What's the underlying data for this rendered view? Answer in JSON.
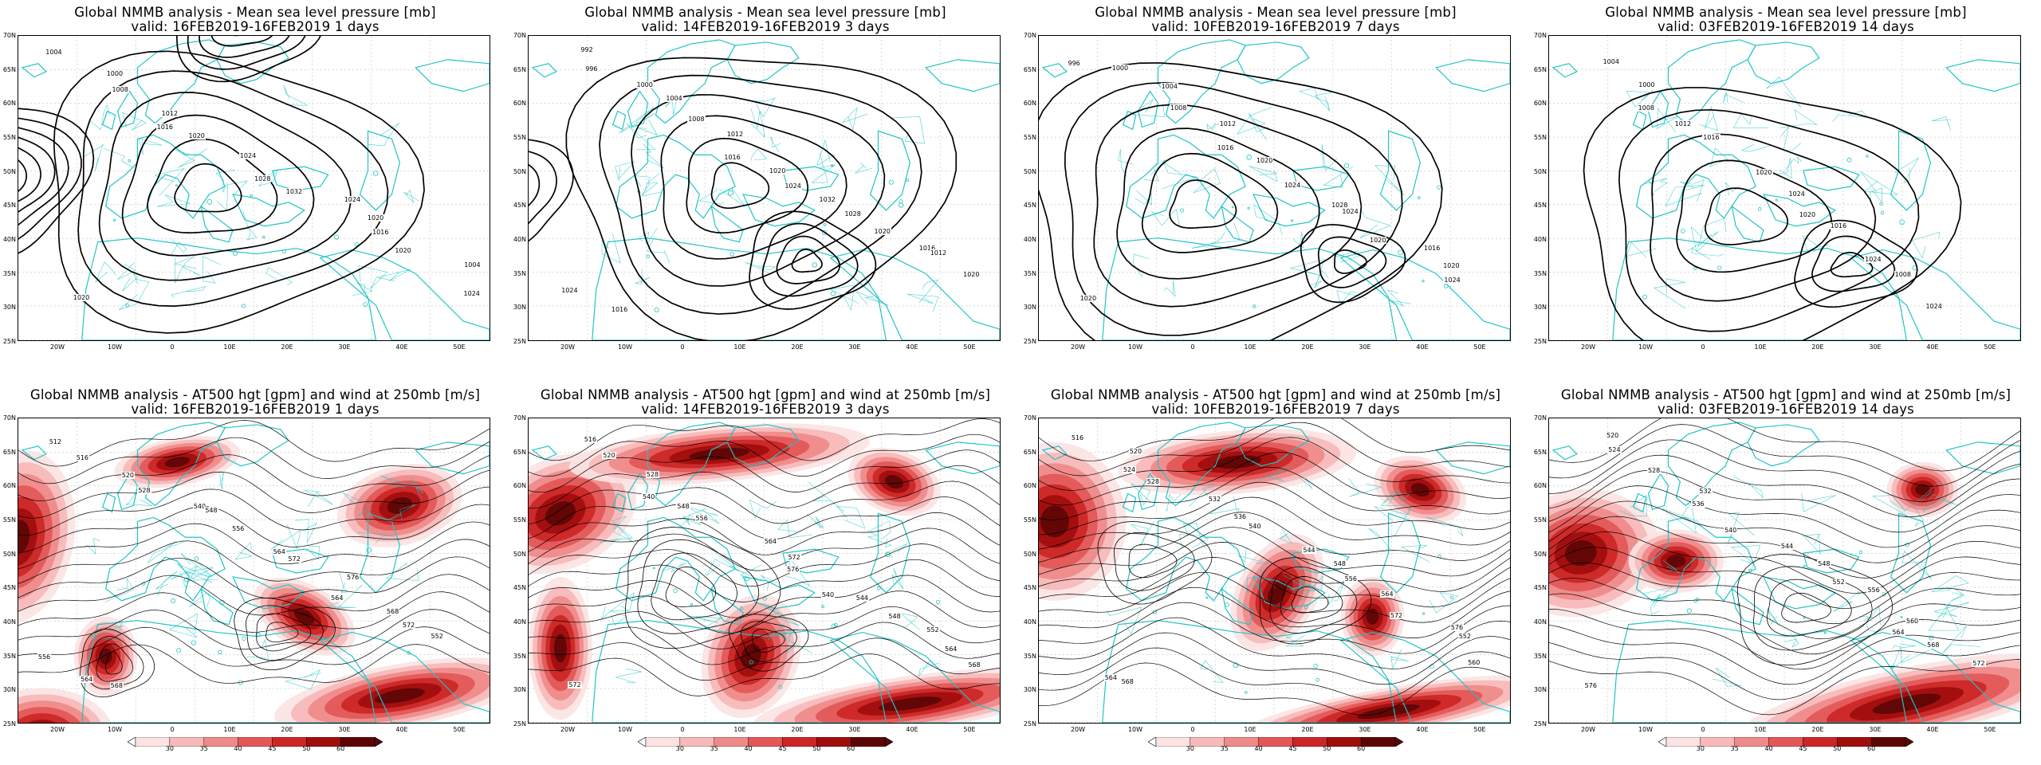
{
  "colors": {
    "coast": "#22c4c4",
    "contour": "#000000",
    "wind_scale": [
      "#fbe3e3",
      "#f7b9b9",
      "#ef8a8a",
      "#e35757",
      "#cc2626",
      "#a00d0d",
      "#5c0505"
    ]
  },
  "axes": {
    "y_ticks": [
      "70N",
      "65N",
      "60N",
      "55N",
      "50N",
      "45N",
      "40N",
      "35N",
      "30N",
      "25N"
    ],
    "x_ticks": [
      "20W",
      "10W",
      "0",
      "10E",
      "20E",
      "30E",
      "40E",
      "50E"
    ]
  },
  "colorbar": {
    "ticks": [
      "30",
      "35",
      "40",
      "45",
      "50",
      "60"
    ]
  },
  "panels": [
    {
      "id": "mslp-1",
      "title": "Global NMMB analysis - Mean sea level pressure [mb]",
      "subtitle": "valid: 16FEB2019-16FEB2019   1 days",
      "labels": [
        "1004",
        "1000",
        "1008",
        "1012",
        "1016",
        "1020",
        "1024",
        "1028",
        "1032",
        "1024",
        "1020",
        "1016",
        "1020",
        "1004",
        "1024",
        "1020"
      ]
    },
    {
      "id": "mslp-3",
      "title": "Global NMMB analysis - Mean sea level pressure [mb]",
      "subtitle": "valid: 14FEB2019-16FEB2019   3 days",
      "labels": [
        "992",
        "996",
        "1000",
        "1004",
        "1008",
        "1012",
        "1016",
        "1020",
        "1024",
        "1032",
        "1028",
        "1020",
        "1016",
        "1012",
        "1020",
        "1024",
        "1016"
      ]
    },
    {
      "id": "mslp-7",
      "title": "Global NMMB analysis - Mean sea level pressure [mb]",
      "subtitle": "valid: 10FEB2019-16FEB2019   7 days",
      "labels": [
        "996",
        "1000",
        "1004",
        "1008",
        "1012",
        "1016",
        "1020",
        "1024",
        "1028",
        "1024",
        "1020",
        "1016",
        "1020",
        "1024",
        "1020"
      ]
    },
    {
      "id": "mslp-14",
      "title": "Global NMMB analysis - Mean sea level pressure [mb]",
      "subtitle": "valid: 03FEB2019-16FEB2019   14 days",
      "labels": [
        "1004",
        "1000",
        "1008",
        "1012",
        "1016",
        "1020",
        "1024",
        "1020",
        "1016",
        "1024",
        "1008",
        "1024"
      ]
    },
    {
      "id": "at500-1",
      "title": "Global NMMB analysis - AT500 hgt [gpm] and wind at 250mb [m/s]",
      "subtitle": "valid: 16FEB2019-16FEB2019   1 days",
      "labels": [
        "512",
        "516",
        "520",
        "528",
        "540",
        "548",
        "556",
        "564",
        "572",
        "576",
        "564",
        "568",
        "572",
        "552",
        "556",
        "564",
        "568"
      ]
    },
    {
      "id": "at500-3",
      "title": "Global NMMB analysis - AT500 hgt [gpm] and wind at 250mb [m/s]",
      "subtitle": "valid: 14FEB2019-16FEB2019   3 days",
      "labels": [
        "516",
        "520",
        "528",
        "540",
        "548",
        "556",
        "564",
        "572",
        "576",
        "540",
        "544",
        "548",
        "552",
        "564",
        "568",
        "572"
      ]
    },
    {
      "id": "at500-7",
      "title": "Global NMMB analysis - AT500 hgt [gpm] and wind at 250mb [m/s]",
      "subtitle": "valid: 10FEB2019-16FEB2019   7 days",
      "labels": [
        "516",
        "520",
        "524",
        "528",
        "532",
        "536",
        "540",
        "544",
        "548",
        "556",
        "564",
        "572",
        "576",
        "552",
        "560",
        "564",
        "568"
      ]
    },
    {
      "id": "at500-14",
      "title": "Global NMMB analysis - AT500 hgt [gpm] and wind at 250mb [m/s]",
      "subtitle": "valid: 03FEB2019-16FEB2019   14 days",
      "labels": [
        "520",
        "524",
        "528",
        "532",
        "536",
        "540",
        "544",
        "548",
        "552",
        "556",
        "560",
        "564",
        "568",
        "572",
        "576"
      ]
    }
  ]
}
